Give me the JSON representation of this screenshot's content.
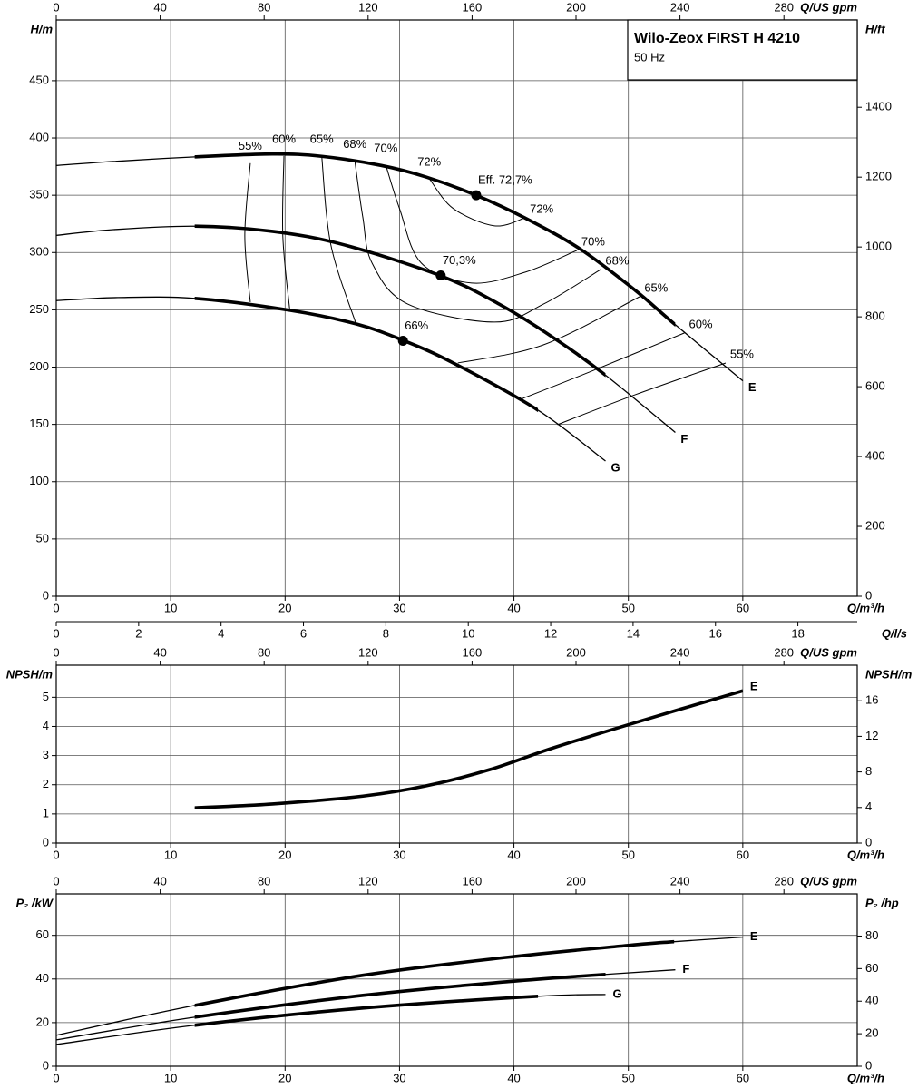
{
  "chart_data": [
    {
      "type": "line",
      "title": "Wilo-Zeox FIRST H 4210",
      "subtitle": "50 Hz",
      "xlabel": "Q/m³/h",
      "x2label": "Q/US gpm",
      "x3label": "Q/l/s",
      "ylabel": "H/m",
      "y2label": "H/ft",
      "xlim": [
        0,
        70
      ],
      "xticks": [
        0,
        10,
        20,
        30,
        40,
        50,
        60
      ],
      "x2lim": [
        0,
        308.2
      ],
      "x2ticks": [
        0,
        40,
        80,
        120,
        160,
        200,
        240,
        280
      ],
      "x3lim": [
        0,
        19.44
      ],
      "x3ticks": [
        0,
        2,
        4,
        6,
        8,
        10,
        12,
        14,
        16,
        18
      ],
      "ylim": [
        0,
        503
      ],
      "yticks": [
        0,
        50,
        100,
        150,
        200,
        250,
        300,
        350,
        400,
        450
      ],
      "y2lim": [
        0,
        1650
      ],
      "y2ticks": [
        0,
        200,
        400,
        600,
        800,
        1000,
        1200,
        1400
      ],
      "grid": true,
      "color": "#000000",
      "series": [
        {
          "name": "E",
          "x": [
            0,
            5,
            12.1,
            18.9,
            23.2,
            28.4,
            32.3,
            36.7,
            41.0,
            45.8,
            50.6,
            54.1,
            60
          ],
          "values": [
            376,
            379.5,
            383.5,
            386,
            384,
            376,
            366,
            350,
            330,
            303,
            267,
            237,
            188
          ],
          "operating_range": [
            12.1,
            54.1
          ]
        },
        {
          "name": "F",
          "x": [
            0,
            5,
            12.1,
            18.9,
            25.2,
            33.6,
            38.7,
            43.4,
            48,
            54.1
          ],
          "values": [
            315,
            320,
            323,
            318.5,
            306.6,
            279.7,
            255,
            226,
            193,
            143
          ],
          "operating_range": [
            12.1,
            48
          ]
        },
        {
          "name": "G",
          "x": [
            0,
            5.4,
            12.1,
            20.4,
            26.2,
            30.3,
            34.7,
            42.1,
            48
          ],
          "values": [
            258,
            260.7,
            260,
            249.6,
            237.7,
            223.4,
            203.6,
            162.4,
            118
          ],
          "operating_range": [
            12.1,
            42.1
          ]
        }
      ],
      "efficiency_lines": [
        {
          "label": "55%",
          "pieces": [
            {
              "x": [
                16.96,
                16.48,
                16.96
              ],
              "values": [
                378.0,
                314.6,
                256.7
              ]
            },
            {
              "x": [
                43.8,
                50.6,
                58.5
              ],
              "values": [
                149.8,
                175.9,
                203.6
              ]
            }
          ]
        },
        {
          "label": "60%",
          "pieces": [
            {
              "x": [
                19.9,
                19.8,
                20.4
              ],
              "values": [
                384.3,
                314.6,
                250.4
              ]
            },
            {
              "x": [
                40.6,
                46.6,
                54.9
              ],
              "values": [
                172.0,
                195.7,
                229.8
              ]
            }
          ]
        },
        {
          "label": "65%",
          "pieces": [
            {
              "x": [
                23.2,
                24.0,
                26.2
              ],
              "values": [
                384.3,
                306.7,
                237.7
              ]
            },
            {
              "x": [
                35.1,
                42.6,
                51.0
              ],
              "values": [
                203.6,
                219.5,
                261.5
              ]
            }
          ]
        },
        {
          "label": "68%",
          "pieces": [
            {
              "x": [
                26.1,
                26.8,
                27.6,
                30.7,
                38.3,
                42.6,
                47.6
              ],
              "values": [
                379.6,
                330.4,
                290.8,
                255.1,
                239.3,
                255.1,
                285.3
              ]
            }
          ]
        },
        {
          "label": "70%",
          "pieces": [
            {
              "x": [
                28.8,
                30.0,
                31.9,
                36.3,
                41.0,
                45.5
              ],
              "values": [
                376.4,
                338.4,
                290.8,
                273.4,
                282.9,
                301.9
              ]
            }
          ]
        },
        {
          "label": "72%",
          "pieces": [
            {
              "x": [
                32.6,
                34.7,
                38.3,
                41.0
              ],
              "values": [
                364.5,
                338.4,
                323.3,
                330.4
              ]
            }
          ]
        }
      ],
      "duty_points": [
        {
          "label": "Eff. 72,7%",
          "x": 36.7,
          "value": 350
        },
        {
          "label": "70,3%",
          "x": 33.6,
          "value": 280
        },
        {
          "label": "66%",
          "x": 30.3,
          "value": 223
        }
      ]
    },
    {
      "type": "line",
      "xlabel": "Q/m³/h",
      "x2label": "Q/US gpm",
      "ylabel": "NPSH/m",
      "y2label": "NPSH/m",
      "xlim": [
        0,
        70
      ],
      "xticks": [
        0,
        10,
        20,
        30,
        40,
        50,
        60
      ],
      "x2lim": [
        0,
        308.2
      ],
      "x2ticks": [
        0,
        40,
        80,
        120,
        160,
        200,
        240,
        280
      ],
      "ylim": [
        0,
        6.1
      ],
      "yticks": [
        0,
        1,
        2,
        3,
        4,
        5
      ],
      "y2lim": [
        0,
        20
      ],
      "y2ticks": [
        0,
        4,
        8,
        12,
        16
      ],
      "grid": true,
      "color": "#000000",
      "series": [
        {
          "name": "E",
          "x": [
            12.1,
            18.9,
            26.8,
            32.3,
            37.9,
            43.4,
            50.6,
            60
          ],
          "values": [
            1.21,
            1.34,
            1.61,
            1.96,
            2.52,
            3.26,
            4.13,
            5.22
          ],
          "operating_range": [
            12.1,
            60
          ]
        }
      ]
    },
    {
      "type": "line",
      "xlabel": "Q/m³/h",
      "x2label": "Q/US gpm",
      "ylabel": "P₂ /kW",
      "y2label": "P₂ /hp",
      "xlim": [
        0,
        70
      ],
      "xticks": [
        0,
        10,
        20,
        30,
        40,
        50,
        60
      ],
      "x2lim": [
        0,
        308.2
      ],
      "x2ticks": [
        0,
        40,
        80,
        120,
        160,
        200,
        240,
        280
      ],
      "ylim": [
        0,
        79
      ],
      "yticks": [
        0,
        20,
        40,
        60
      ],
      "y2lim": [
        0,
        105.9
      ],
      "y2ticks": [
        0,
        20,
        40,
        60,
        80
      ],
      "grid": true,
      "color": "#000000",
      "series": [
        {
          "name": "E",
          "x": [
            0,
            12.1,
            26.8,
            39.5,
            50,
            54,
            60
          ],
          "values": [
            14.2,
            27.9,
            41.7,
            50,
            55.4,
            57.1,
            59.2
          ],
          "operating_range": [
            12.1,
            54
          ]
        },
        {
          "name": "F",
          "x": [
            0,
            12.1,
            26.8,
            39.5,
            48,
            54.1
          ],
          "values": [
            12.1,
            22.5,
            32.5,
            38.8,
            42.1,
            44.2
          ],
          "operating_range": [
            12.1,
            48
          ]
        },
        {
          "name": "G",
          "x": [
            0,
            12.1,
            26.8,
            42.1,
            48
          ],
          "values": [
            10,
            18.8,
            26.7,
            32.1,
            32.9
          ],
          "operating_range": [
            12.1,
            42.1
          ]
        }
      ]
    }
  ]
}
